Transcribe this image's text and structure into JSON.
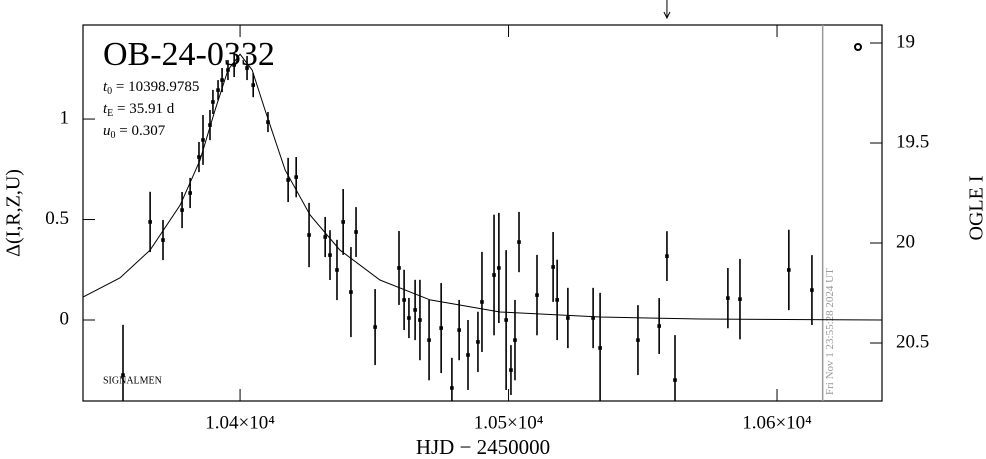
{
  "chart_data": {
    "type": "errorbar",
    "title": "OB-24-0332",
    "annotations": [
      {
        "symbol": "t",
        "sub": "0",
        "text": " = 10398.9785"
      },
      {
        "symbol": "t",
        "sub": "E",
        "text": " = 35.91 d"
      },
      {
        "symbol": "u",
        "sub": "0",
        "text": " = 0.307"
      }
    ],
    "footnote": "SIGNALMEN",
    "timestamp": "Fri Nov  1 23:55:28 2024 UT",
    "timestamp_x": 10617,
    "arrow_x": 10559,
    "xlabel": "HJD − 2450000",
    "ylabel": "Δ(I,R,Z,U)",
    "y2label": "OGLE I",
    "xlim": [
      10341.5,
      10639.1
    ],
    "ylim": [
      -0.403,
      1.468
    ],
    "y2lim": [
      20.79,
      18.91
    ],
    "xticks": [
      {
        "value": 10400,
        "label": "1.04×10⁴"
      },
      {
        "value": 10500,
        "label": "1.05×10⁴"
      },
      {
        "value": 10600,
        "label": "1.06×10⁴"
      }
    ],
    "yticks": [
      0,
      0.5,
      1
    ],
    "y2ticks": [
      19,
      19.5,
      20,
      20.5
    ],
    "series": [
      {
        "color": "#000000",
        "x": [
          10356.4,
          10366.5,
          10371.3,
          10378.4,
          10381.4,
          10384.7,
          10386.2,
          10388.8,
          10389.9,
          10391.8,
          10393.3,
          10395.5,
          10397.8,
          10402.6,
          10404.9,
          10410.4,
          10417.9,
          10420.9,
          10425.7,
          10431.7,
          10433.5,
          10436.1,
          10438.4,
          10441.3,
          10443.2,
          10450.3,
          10459.2,
          10461.1,
          10462.9,
          10465.2,
          10467.0,
          10470.4,
          10474.9,
          10478.9,
          10481.6,
          10484.9,
          10488.6,
          10490.1,
          10494.6,
          10496.4,
          10499.1,
          10500.9,
          10502.4,
          10503.9,
          10510.6,
          10516.6,
          10518.1,
          10522.1,
          10531.5,
          10534.1,
          10548.2,
          10556.1,
          10559.0,
          10562.0,
          10581.7,
          10586.2,
          10604.4,
          10613.0
        ],
        "values": [
          -0.274,
          0.488,
          0.398,
          0.547,
          0.632,
          0.811,
          0.896,
          0.97,
          1.085,
          1.144,
          1.194,
          1.244,
          1.269,
          1.254,
          1.169,
          0.985,
          0.697,
          0.711,
          0.423,
          0.413,
          0.323,
          0.249,
          0.488,
          0.139,
          0.438,
          -0.035,
          0.259,
          0.1,
          0.01,
          0.05,
          0.0,
          -0.1,
          -0.04,
          -0.338,
          -0.05,
          -0.174,
          -0.109,
          0.09,
          0.224,
          0.259,
          0.0,
          -0.249,
          -0.1,
          0.388,
          0.124,
          0.264,
          0.1,
          0.01,
          0.01,
          -0.139,
          -0.1,
          -0.03,
          0.318,
          -0.299,
          0.109,
          0.104,
          0.249,
          0.149
        ],
        "errors": [
          0.25,
          0.15,
          0.1,
          0.09,
          0.075,
          0.075,
          0.124,
          0.075,
          0.06,
          0.05,
          0.06,
          0.05,
          0.06,
          0.06,
          0.06,
          0.05,
          0.11,
          0.1,
          0.16,
          0.1,
          0.124,
          0.15,
          0.164,
          0.224,
          0.124,
          0.189,
          0.184,
          0.15,
          0.1,
          0.15,
          0.2,
          0.2,
          0.224,
          0.15,
          0.15,
          0.174,
          0.15,
          0.249,
          0.3,
          0.274,
          0.348,
          0.124,
          0.2,
          0.15,
          0.2,
          0.174,
          0.2,
          0.15,
          0.15,
          0.274,
          0.174,
          0.139,
          0.124,
          0.224,
          0.15,
          0.2,
          0.2,
          0.174
        ]
      }
    ],
    "model": {
      "color": "#000000",
      "x": [
        10341.5,
        10355.3,
        10366.5,
        10377.7,
        10385.1,
        10390.7,
        10395.5,
        10400,
        10404.5,
        10409.3,
        10416.8,
        10426.1,
        10437.2,
        10452.1,
        10470.8,
        10496.8,
        10534.1,
        10571.3,
        10639.1
      ],
      "values": [
        0.114,
        0.21,
        0.348,
        0.572,
        0.796,
        1.045,
        1.244,
        1.323,
        1.244,
        1.045,
        0.746,
        0.522,
        0.348,
        0.199,
        0.1,
        0.04,
        0.015,
        0.005,
        0
      ]
    }
  }
}
